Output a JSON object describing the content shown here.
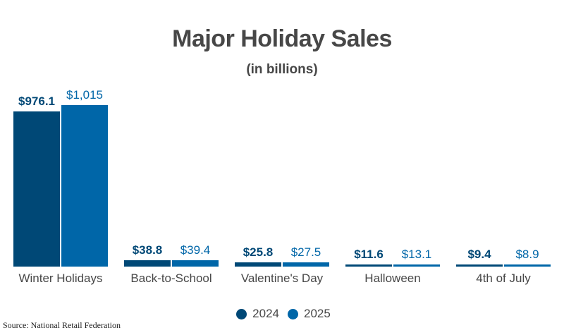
{
  "chart_data": {
    "type": "bar",
    "title": "Major Holiday Sales",
    "subtitle": "(in billions)",
    "xlabel": "",
    "ylabel": "",
    "categories": [
      "Winter Holidays",
      "Back-to-School",
      "Valentine's Day",
      "Halloween",
      "4th of July"
    ],
    "series": [
      {
        "name": "2024",
        "color": "#004876",
        "values": [
          976.1,
          38.8,
          25.8,
          11.6,
          9.4
        ],
        "labels": [
          "$976.1",
          "$38.8",
          "$25.8",
          "$11.6",
          "$9.4"
        ]
      },
      {
        "name": "2025",
        "color": "#0066a8",
        "values": [
          1015,
          39.4,
          27.5,
          13.1,
          8.9
        ],
        "labels": [
          "$1,015",
          "$39.4",
          "$27.5",
          "$13.1",
          "$8.9"
        ]
      }
    ],
    "ylim": [
      0,
      1015
    ],
    "grid": false,
    "legend_position": "bottom"
  },
  "header": {
    "title": "Major Holiday Sales",
    "subtitle": "(in billions)"
  },
  "legend": {
    "items": [
      {
        "label": "2024",
        "color": "#004876"
      },
      {
        "label": "2025",
        "color": "#0066a8"
      }
    ]
  },
  "footer": {
    "source": "Source: National Retail Federation"
  }
}
